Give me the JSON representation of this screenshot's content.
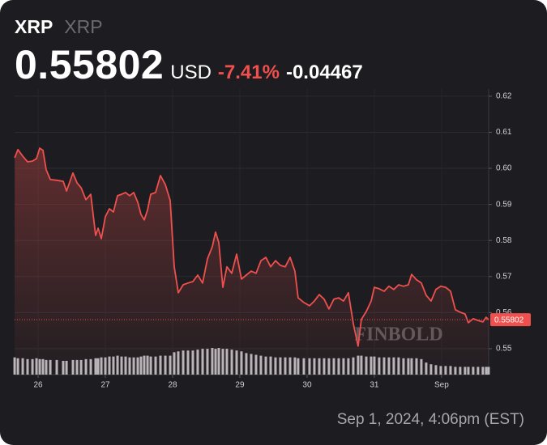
{
  "header": {
    "symbol": "XRP",
    "name": "XRP",
    "last_price": 0.55802,
    "currency": "USD",
    "change_pct_label": "-7.41%",
    "change": -0.04467
  },
  "timestamp": "Sep 1, 2024, 4:06pm (EST)",
  "chart_data": {
    "type": "line",
    "watermark": "FINBOLD",
    "color": "#f0504d",
    "grid": true,
    "x": [
      25.651,
      25.699,
      25.771,
      25.843,
      25.916,
      25.976,
      26.024,
      26.072,
      26.12,
      26.181,
      26.277,
      26.373,
      26.422,
      26.518,
      26.578,
      26.639,
      26.711,
      26.783,
      26.855,
      26.892,
      26.94,
      27.0,
      27.06,
      27.12,
      27.181,
      27.241,
      27.301,
      27.361,
      27.422,
      27.482,
      27.53,
      27.578,
      27.627,
      27.675,
      27.747,
      27.819,
      27.892,
      27.964,
      28.024,
      28.084,
      28.157,
      28.229,
      28.301,
      28.373,
      28.446,
      28.518,
      28.59,
      28.639,
      28.687,
      28.747,
      28.807,
      28.88,
      28.952,
      29.024,
      29.096,
      29.169,
      29.241,
      29.313,
      29.386,
      29.458,
      29.53,
      29.602,
      29.675,
      29.747,
      29.819,
      29.867,
      29.952,
      30.036,
      30.108,
      30.181,
      30.253,
      30.325,
      30.398,
      30.47,
      30.542,
      30.614,
      30.687,
      30.759,
      30.807,
      30.88,
      30.952,
      31.0,
      31.072,
      31.145,
      31.217,
      31.289,
      31.361,
      31.434,
      31.506,
      31.554,
      31.627,
      31.699,
      31.771,
      31.843,
      31.916,
      31.988,
      32.06,
      32.133,
      32.205,
      32.277,
      32.349,
      32.398,
      32.47,
      32.542,
      32.614,
      32.663,
      32.699
    ],
    "values": [
      0.6029,
      0.6052,
      0.6034,
      0.6018,
      0.602,
      0.6027,
      0.6056,
      0.605,
      0.5996,
      0.5969,
      0.5967,
      0.5964,
      0.5937,
      0.5987,
      0.596,
      0.5946,
      0.5913,
      0.5928,
      0.5814,
      0.5834,
      0.5805,
      0.5866,
      0.5888,
      0.5879,
      0.5924,
      0.5928,
      0.5933,
      0.5924,
      0.5933,
      0.5906,
      0.5872,
      0.5857,
      0.5884,
      0.5928,
      0.5933,
      0.598,
      0.5955,
      0.5911,
      0.5727,
      0.5655,
      0.5677,
      0.5682,
      0.5686,
      0.5704,
      0.5682,
      0.5749,
      0.5783,
      0.5823,
      0.5794,
      0.567,
      0.5727,
      0.5709,
      0.5762,
      0.5693,
      0.5704,
      0.5715,
      0.5709,
      0.5744,
      0.5753,
      0.5727,
      0.5744,
      0.5731,
      0.5727,
      0.5753,
      0.5715,
      0.5641,
      0.5628,
      0.5619,
      0.5632,
      0.565,
      0.5637,
      0.561,
      0.5637,
      0.5641,
      0.5632,
      0.5655,
      0.5569,
      0.5507,
      0.5581,
      0.5603,
      0.5632,
      0.567,
      0.5666,
      0.5659,
      0.5673,
      0.5664,
      0.5677,
      0.5673,
      0.5677,
      0.5706,
      0.5691,
      0.5682,
      0.5648,
      0.5632,
      0.5664,
      0.5673,
      0.567,
      0.5659,
      0.5608,
      0.5601,
      0.5596,
      0.5572,
      0.5583,
      0.5578,
      0.5574,
      0.5587,
      0.55802
    ],
    "volume": [
      20,
      19,
      19,
      18,
      18,
      19,
      18,
      18,
      17,
      17,
      17,
      16,
      16,
      17,
      17,
      17,
      18,
      18,
      19,
      19,
      20,
      20,
      21,
      21,
      22,
      21,
      21,
      20,
      20,
      20,
      21,
      22,
      22,
      21,
      21,
      22,
      22,
      22,
      26,
      27,
      28,
      28,
      28,
      29,
      30,
      30,
      31,
      30,
      31,
      30,
      30,
      29,
      28,
      27,
      25,
      24,
      23,
      22,
      21,
      21,
      20,
      20,
      20,
      20,
      20,
      19,
      19,
      19,
      19,
      19,
      19,
      19,
      19,
      19,
      19,
      19,
      20,
      22,
      22,
      21,
      21,
      21,
      20,
      20,
      20,
      20,
      20,
      19,
      19,
      19,
      19,
      18,
      14,
      12,
      11,
      10,
      10,
      10,
      9,
      9,
      9,
      9,
      9,
      9,
      9,
      9,
      9
    ],
    "last_value": 0.55802,
    "xlim": [
      25.65,
      32.7
    ],
    "xticks": [
      26,
      27,
      28,
      29,
      30,
      31,
      {
        "value": 32,
        "label": "Sep"
      }
    ],
    "ylim": [
      0.5428,
      0.622
    ],
    "yticks": [
      0.55,
      0.56,
      0.57,
      0.58,
      0.59,
      {
        "value": 0.6,
        "label": "0.60"
      },
      0.61,
      0.62
    ]
  }
}
